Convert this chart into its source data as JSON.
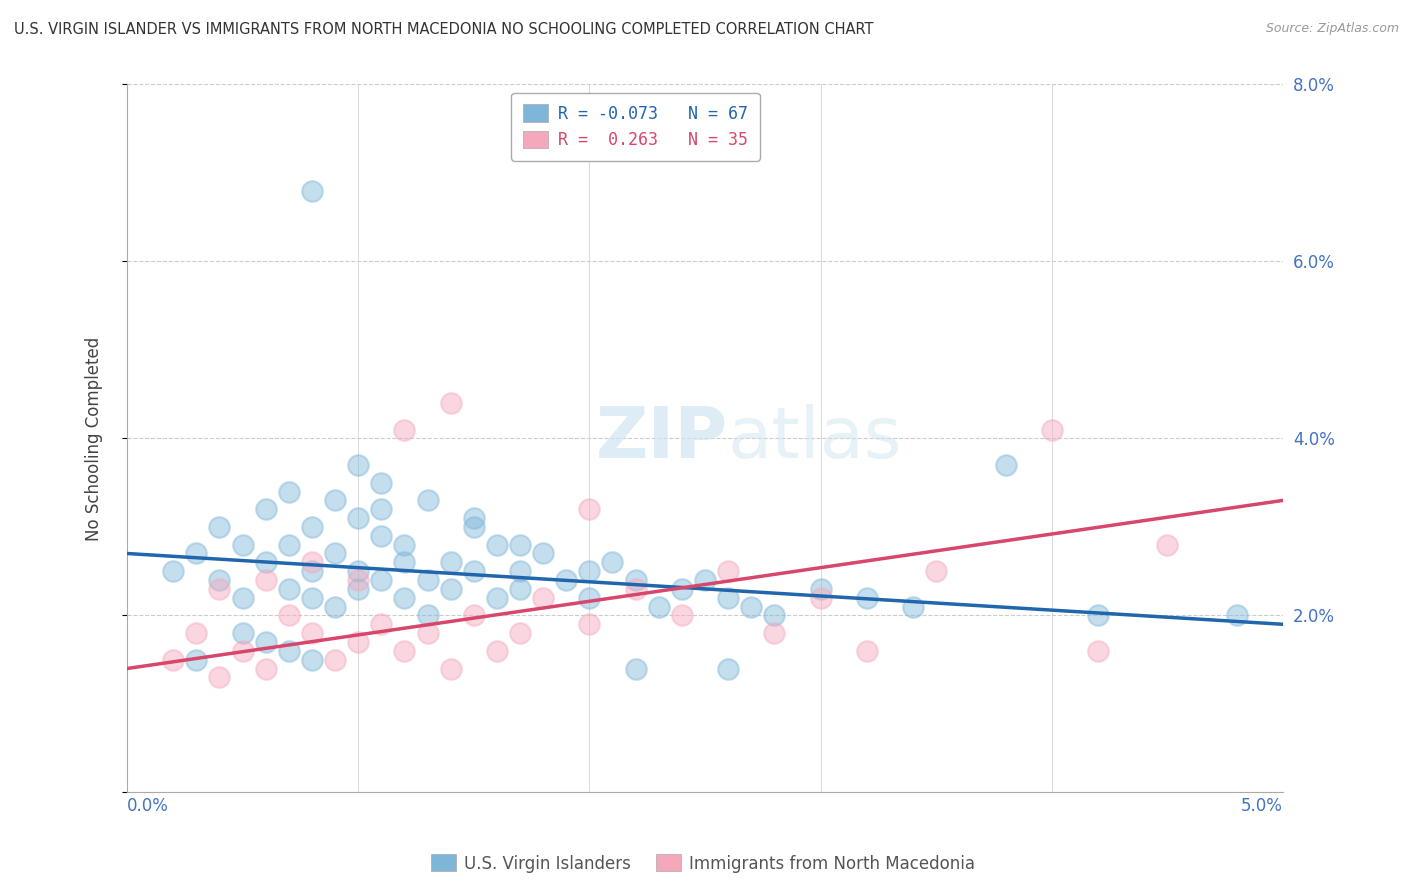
{
  "title": "U.S. VIRGIN ISLANDER VS IMMIGRANTS FROM NORTH MACEDONIA NO SCHOOLING COMPLETED CORRELATION CHART",
  "source": "Source: ZipAtlas.com",
  "ylabel": "No Schooling Completed",
  "legend_blue_r": "-0.073",
  "legend_blue_n": "67",
  "legend_pink_r": " 0.263",
  "legend_pink_n": "35",
  "blue_color": "#7eb6d9",
  "pink_color": "#f4a8bc",
  "blue_line_color": "#2166ac",
  "pink_line_color": "#d6476b",
  "watermark_color": "#d0e4f2",
  "blue_scatter_x": [
    0.002,
    0.003,
    0.004,
    0.004,
    0.005,
    0.005,
    0.006,
    0.006,
    0.007,
    0.007,
    0.007,
    0.008,
    0.008,
    0.008,
    0.009,
    0.009,
    0.009,
    0.01,
    0.01,
    0.01,
    0.011,
    0.011,
    0.011,
    0.012,
    0.012,
    0.012,
    0.013,
    0.013,
    0.014,
    0.014,
    0.015,
    0.015,
    0.016,
    0.016,
    0.017,
    0.017,
    0.018,
    0.019,
    0.02,
    0.021,
    0.022,
    0.023,
    0.024,
    0.025,
    0.026,
    0.027,
    0.028,
    0.03,
    0.032,
    0.034,
    0.01,
    0.011,
    0.013,
    0.015,
    0.017,
    0.02,
    0.005,
    0.006,
    0.007,
    0.008,
    0.038,
    0.042,
    0.008,
    0.022,
    0.003,
    0.026,
    0.048
  ],
  "blue_scatter_y": [
    0.025,
    0.027,
    0.03,
    0.024,
    0.028,
    0.022,
    0.032,
    0.026,
    0.034,
    0.023,
    0.028,
    0.03,
    0.025,
    0.022,
    0.033,
    0.027,
    0.021,
    0.031,
    0.025,
    0.023,
    0.029,
    0.024,
    0.032,
    0.026,
    0.022,
    0.028,
    0.024,
    0.02,
    0.026,
    0.023,
    0.031,
    0.025,
    0.022,
    0.028,
    0.025,
    0.023,
    0.027,
    0.024,
    0.022,
    0.026,
    0.024,
    0.021,
    0.023,
    0.024,
    0.022,
    0.021,
    0.02,
    0.023,
    0.022,
    0.021,
    0.037,
    0.035,
    0.033,
    0.03,
    0.028,
    0.025,
    0.018,
    0.017,
    0.016,
    0.015,
    0.037,
    0.02,
    0.068,
    0.014,
    0.015,
    0.014,
    0.02
  ],
  "pink_scatter_x": [
    0.002,
    0.003,
    0.004,
    0.005,
    0.006,
    0.007,
    0.008,
    0.009,
    0.01,
    0.011,
    0.012,
    0.013,
    0.014,
    0.015,
    0.016,
    0.017,
    0.018,
    0.02,
    0.022,
    0.024,
    0.026,
    0.028,
    0.03,
    0.014,
    0.012,
    0.035,
    0.04,
    0.042,
    0.045,
    0.01,
    0.008,
    0.006,
    0.004,
    0.02,
    0.032
  ],
  "pink_scatter_y": [
    0.015,
    0.018,
    0.013,
    0.016,
    0.014,
    0.02,
    0.018,
    0.015,
    0.017,
    0.019,
    0.016,
    0.018,
    0.014,
    0.02,
    0.016,
    0.018,
    0.022,
    0.019,
    0.023,
    0.02,
    0.025,
    0.018,
    0.022,
    0.044,
    0.041,
    0.025,
    0.041,
    0.016,
    0.028,
    0.024,
    0.026,
    0.024,
    0.023,
    0.032,
    0.016
  ]
}
